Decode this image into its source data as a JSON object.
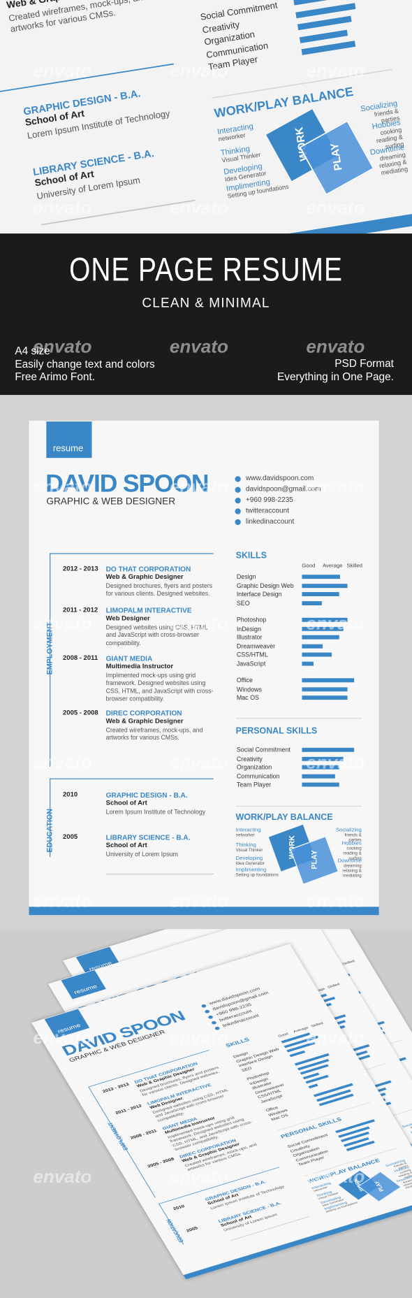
{
  "header": {
    "title": "ONE PAGE RESUME",
    "subtitle": "CLEAN & MINIMAL"
  },
  "features_left": [
    "A4 size",
    "Easily change text and colors",
    "Free Arimo Font."
  ],
  "features_right": [
    "PSD Format",
    "Everything in One Page."
  ],
  "watermark": "envato",
  "resume": {
    "tag": "resume",
    "name": "DAVID SPOON",
    "role": "GRAPHIC & WEB DESIGNER",
    "contacts": [
      "www.davidspoon.com",
      "davidspoon@gmail.com",
      "+960 998-2235",
      "twitteraccount",
      "linkedinaccount"
    ],
    "employment": {
      "label": "EMPLOYMENT",
      "items": [
        {
          "years": "2012 - 2013",
          "company": "DO THAT CORPORATION",
          "title": "Web & Graphic Designer",
          "desc": "Designed brochures, flyers and posters for various clients. Designed websites."
        },
        {
          "years": "2011 - 2012",
          "company": "LIMOPALM INTERACTIVE",
          "title": "Web Designer",
          "desc": "Designed websites using CSS, HTML and JavaScript with cross-browser compatibility."
        },
        {
          "years": "2008 - 2011",
          "company": "GIANT MEDIA",
          "title": "Multimedia Instructor",
          "desc": "Implimented mock-ups using grid framework. Designed websites using CSS, HTML, and JavaScript with cross-browser compatibility."
        },
        {
          "years": "2005 - 2008",
          "company": "DIREC CORPORATION",
          "title": "Web & Graphic Designer",
          "desc": "Created wireframes, mock-ups, and artworks for various CMSs."
        }
      ]
    },
    "education": {
      "label": "EDUCATION",
      "items": [
        {
          "year": "2010",
          "degree": "GRAPHIC DESIGN - B.A.",
          "school": "School of Art",
          "place": "Lorem Ipsum Institute of Technology"
        },
        {
          "year": "2005",
          "degree": "LIBRARY SCIENCE - B.A.",
          "school": "School of Art",
          "place": "University of Lorem Ipsum"
        }
      ]
    },
    "skills": {
      "title": "SKILLS",
      "scale": [
        "Good",
        "Average",
        "Skilled"
      ],
      "groups": [
        [
          {
            "name": "Design",
            "level": 64
          },
          {
            "name": "Graphic Design Web",
            "level": 76
          },
          {
            "name": "Interface Design",
            "level": 62
          },
          {
            "name": "SEO",
            "level": 33
          }
        ],
        [
          {
            "name": "Photoshop",
            "level": 76
          },
          {
            "name": "InDesign",
            "level": 69
          },
          {
            "name": "Illustrator",
            "level": 62
          },
          {
            "name": "Dreamweaver",
            "level": 35
          },
          {
            "name": "CSS/HTML",
            "level": 50
          },
          {
            "name": "JavaScript",
            "level": 19
          }
        ],
        [
          {
            "name": "Office",
            "level": 88
          },
          {
            "name": "Windows",
            "level": 76
          },
          {
            "name": "Mac OS",
            "level": 76
          }
        ]
      ]
    },
    "personal": {
      "title": "PERSONAL SKILLS",
      "items": [
        {
          "name": "Social Commitment",
          "level": 88
        },
        {
          "name": "Creativity",
          "level": 69
        },
        {
          "name": "Organization",
          "level": 62
        },
        {
          "name": "Communication",
          "level": 56
        },
        {
          "name": "Team Player",
          "level": 62
        }
      ]
    },
    "balance": {
      "title": "WORK/PLAY BALANCE",
      "work": "WORK",
      "play": "PLAY",
      "left": [
        {
          "name": "Interacting",
          "note": "networker"
        },
        {
          "name": "Thinking",
          "note": "Visual Thinker"
        },
        {
          "name": "Developing",
          "note": "Idea Generator"
        },
        {
          "name": "Implimenting",
          "note": "Setting up foundations"
        }
      ],
      "right": [
        {
          "name": "Socializing",
          "note": "friends & parties"
        },
        {
          "name": "Hobbies",
          "note": "cooking reading & surfing"
        },
        {
          "name": "Downtime",
          "note": "dreaming relaxing & mediating"
        }
      ]
    }
  }
}
